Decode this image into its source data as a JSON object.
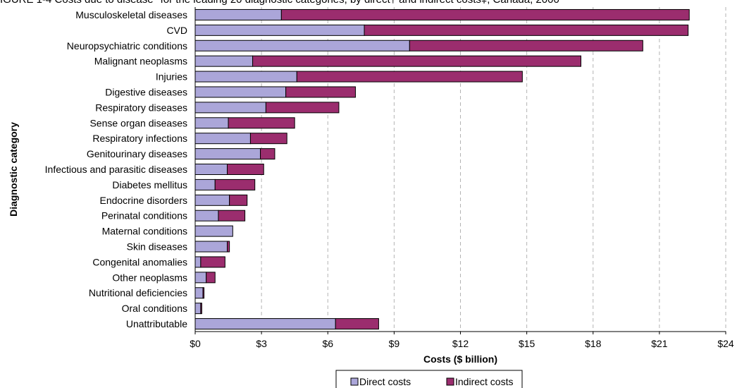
{
  "chart_data": {
    "type": "bar",
    "orientation": "horizontal",
    "stacked": true,
    "title": "IGURE 1-4 Costs due to disease* for the leading 20 diagnostic categories, by direct† and indirect costs‡, Canada, 2000",
    "xlabel": "Costs ($ billion)",
    "ylabel": "Diagnostic category",
    "xlim": [
      0,
      24
    ],
    "x_ticks": [
      "$0",
      "$3",
      "$6",
      "$9",
      "$12",
      "$15",
      "$18",
      "$21",
      "$24"
    ],
    "x_tick_values": [
      0,
      3,
      6,
      9,
      12,
      15,
      18,
      21,
      24
    ],
    "grid": "vertical dashed",
    "legend_position": "bottom",
    "categories": [
      "Musculoskeletal diseases",
      "CVD",
      "Neuropsychiatric conditions",
      "Malignant neoplasms",
      "Injuries",
      "Digestive diseases",
      "Respiratory diseases",
      "Sense organ diseases",
      "Respiratory infections",
      "Genitourinary diseases",
      "Infectious and parasitic diseases",
      "Diabetes mellitus",
      "Endocrine disorders",
      "Perinatal conditions",
      "Maternal conditions",
      "Skin diseases",
      "Congenital anomalies",
      "Other neoplasms",
      "Nutritional deficiencies",
      "Oral conditions",
      "Unattributable"
    ],
    "series": [
      {
        "name": "Direct costs",
        "color": "#aba6d9",
        "values": [
          3.9,
          7.65,
          9.7,
          2.6,
          4.6,
          4.1,
          3.2,
          1.5,
          2.5,
          2.95,
          1.45,
          0.9,
          1.55,
          1.05,
          1.7,
          1.45,
          0.25,
          0.5,
          0.35,
          0.25,
          6.35
        ]
      },
      {
        "name": "Indirect costs",
        "color": "#9b2d6e",
        "values": [
          18.45,
          14.65,
          10.55,
          14.85,
          10.2,
          3.15,
          3.3,
          3.0,
          1.65,
          0.65,
          1.65,
          1.8,
          0.8,
          1.2,
          0.0,
          0.1,
          1.1,
          0.4,
          0.05,
          0.05,
          1.95
        ]
      }
    ]
  }
}
